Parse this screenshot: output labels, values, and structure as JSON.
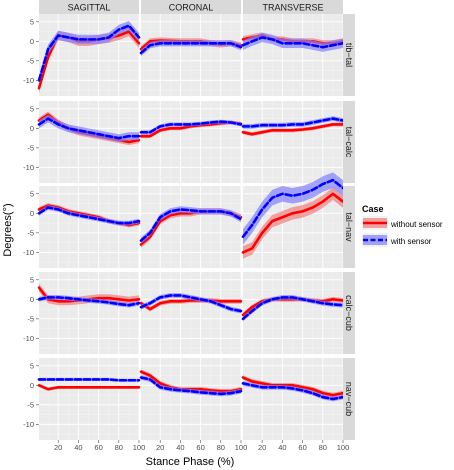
{
  "chart_data": {
    "type": "line",
    "title": "",
    "xlabel": "Stance Phase (%)",
    "ylabel": "Degrees(°)",
    "xlim": [
      1,
      100
    ],
    "ylim": [
      -14,
      7
    ],
    "x_ticks": [
      20,
      40,
      60,
      80,
      100
    ],
    "y_ticks": [
      -10,
      -5,
      0,
      5
    ],
    "grid": true,
    "columns": [
      "SAGITTAL",
      "CORONAL",
      "TRANSVERSE"
    ],
    "rows": [
      "tib−tal",
      "tal−calc",
      "tal−nav",
      "calc−cub",
      "nav−cub"
    ],
    "legend": {
      "title": "Case",
      "position": "right",
      "entries": [
        {
          "label": "without sensor",
          "color": "#ff0000",
          "band": "#f08080",
          "dash": "solid"
        },
        {
          "label": "with sensor",
          "color": "#0000ff",
          "band": "#8080ff",
          "dash": "dashed"
        }
      ]
    },
    "x": [
      1,
      10,
      20,
      30,
      40,
      50,
      60,
      70,
      80,
      90,
      100
    ],
    "panels": [
      {
        "row": 0,
        "col": 0,
        "without": {
          "values": [
            -12,
            -4,
            1.5,
            1,
            0,
            0,
            0.5,
            0.8,
            1.5,
            2.5,
            -0.5
          ],
          "sd": 1.2
        },
        "with": {
          "values": [
            -10,
            -2,
            1.5,
            1,
            0.5,
            0.5,
            0.5,
            1,
            3,
            4,
            1
          ],
          "sd": 1.2
        }
      },
      {
        "row": 0,
        "col": 1,
        "without": {
          "values": [
            -2,
            0,
            0.2,
            0.1,
            0,
            0,
            0,
            -0.5,
            -0.8,
            -0.5,
            -1
          ],
          "sd": 0.8
        },
        "with": {
          "values": [
            -3,
            -1,
            -0.5,
            -0.5,
            -0.5,
            -0.5,
            -0.5,
            -0.5,
            -0.5,
            -0.5,
            -1.5
          ],
          "sd": 0.8
        }
      },
      {
        "row": 0,
        "col": 2,
        "without": {
          "values": [
            0.5,
            1,
            1.5,
            0.5,
            0.5,
            0,
            0,
            0,
            -0.5,
            -0.5,
            0
          ],
          "sd": 0.8
        },
        "with": {
          "values": [
            -1,
            0,
            1,
            0.5,
            -0.5,
            -0.5,
            -0.5,
            -1,
            -1.5,
            -1,
            -0.5
          ],
          "sd": 1.2
        }
      },
      {
        "row": 1,
        "col": 0,
        "without": {
          "values": [
            2,
            3.5,
            1.5,
            0,
            -1,
            -1.5,
            -2,
            -2.5,
            -3,
            -3.5,
            -3
          ],
          "sd": 0.8
        },
        "with": {
          "values": [
            1,
            2.5,
            1,
            0,
            -0.5,
            -1,
            -1.5,
            -2,
            -2.5,
            -2,
            -2
          ],
          "sd": 1
        }
      },
      {
        "row": 1,
        "col": 1,
        "without": {
          "values": [
            -2,
            -2,
            -0.5,
            0,
            0,
            0.5,
            0.8,
            1,
            1.3,
            1.5,
            1.2
          ],
          "sd": 0.5
        },
        "with": {
          "values": [
            -1,
            -1,
            0.5,
            1,
            1,
            1,
            1.2,
            1.5,
            1.7,
            1.5,
            1
          ],
          "sd": 0.5
        }
      },
      {
        "row": 1,
        "col": 2,
        "without": {
          "values": [
            -1,
            -1.5,
            -1,
            -0.5,
            -0.5,
            -0.5,
            -0.3,
            0,
            0.5,
            1,
            1
          ],
          "sd": 0.5
        },
        "with": {
          "values": [
            0.5,
            0.5,
            0.8,
            0.8,
            0.8,
            1,
            1,
            1.5,
            2,
            2.5,
            2
          ],
          "sd": 0.6
        }
      },
      {
        "row": 2,
        "col": 0,
        "without": {
          "values": [
            1,
            2,
            1.5,
            0.5,
            0,
            -0.5,
            -1,
            -2,
            -2.5,
            -3,
            -2.5
          ],
          "sd": 0.6
        },
        "with": {
          "values": [
            0,
            1.5,
            1,
            0,
            -0.5,
            -1,
            -1.5,
            -2,
            -2.5,
            -2.5,
            -2
          ],
          "sd": 0.6
        }
      },
      {
        "row": 2,
        "col": 1,
        "without": {
          "values": [
            -8,
            -6,
            -2,
            -0.5,
            0,
            0,
            0.5,
            0.5,
            0.5,
            0,
            -1
          ],
          "sd": 0.8
        },
        "with": {
          "values": [
            -7,
            -5,
            -1,
            0.5,
            1,
            0.8,
            0.5,
            0.5,
            0.5,
            0,
            -1.5
          ],
          "sd": 0.8
        }
      },
      {
        "row": 2,
        "col": 2,
        "without": {
          "values": [
            -10,
            -9,
            -5,
            -2,
            -1,
            0,
            0.5,
            1.5,
            3,
            5,
            3
          ],
          "sd": 1.6
        },
        "with": {
          "values": [
            -6,
            -3,
            1,
            4,
            5,
            4.5,
            5,
            6,
            7.5,
            8.5,
            6.5
          ],
          "sd": 2
        }
      },
      {
        "row": 3,
        "col": 0,
        "without": {
          "values": [
            3,
            0,
            -0.5,
            -0.5,
            -0.3,
            0,
            0.3,
            0.3,
            0,
            -0.3,
            0
          ],
          "sd": 1
        }
      },
      {
        "row": 3,
        "col": 0,
        "with": {
          "values": [
            0,
            0.5,
            0.5,
            0.3,
            0,
            -0.3,
            -0.5,
            -0.8,
            -1.2,
            -1.5,
            -1
          ],
          "sd": 0.6
        }
      },
      {
        "row": 3,
        "col": 1,
        "without": {
          "values": [
            -1,
            -2.5,
            -1,
            -0.5,
            -0.5,
            -0.3,
            -0.3,
            -0.3,
            -0.5,
            -0.5,
            -0.5
          ],
          "sd": 0.6
        },
        "with": {
          "values": [
            -2,
            -1,
            0.5,
            1,
            1,
            0.5,
            0,
            -0.5,
            -1.5,
            -2.5,
            -3
          ],
          "sd": 0.6
        }
      },
      {
        "row": 3,
        "col": 2,
        "without": {
          "values": [
            -4,
            -2,
            -0.5,
            0,
            0,
            0,
            0,
            -0.3,
            -0.5,
            0,
            -0.3
          ],
          "sd": 0.6
        },
        "with": {
          "values": [
            -5,
            -3,
            -1,
            0,
            0.5,
            0.5,
            0,
            -0.5,
            -1,
            -1.3,
            -1.5
          ],
          "sd": 0.6
        }
      },
      {
        "row": 4,
        "col": 0,
        "without": {
          "values": [
            0,
            -1,
            -0.5,
            -0.5,
            -0.5,
            -0.5,
            -0.5,
            -0.5,
            -0.5,
            -0.5,
            -0.5
          ],
          "sd": 0.4
        },
        "with": {
          "values": [
            1.5,
            1.5,
            1.5,
            1.5,
            1.5,
            1.5,
            1.5,
            1.5,
            1.3,
            1.3,
            1.3
          ],
          "sd": 0.4
        }
      },
      {
        "row": 4,
        "col": 1,
        "without": {
          "values": [
            3.5,
            2.5,
            0.5,
            -0.5,
            -1,
            -1,
            -1,
            -1.3,
            -1.5,
            -1.5,
            -1
          ],
          "sd": 0.6
        },
        "with": {
          "values": [
            2,
            1.5,
            -0.5,
            -1,
            -1.3,
            -1.5,
            -1.8,
            -2,
            -2.2,
            -2,
            -1.5
          ],
          "sd": 0.6
        }
      },
      {
        "row": 4,
        "col": 2,
        "without": {
          "values": [
            2,
            1,
            0.5,
            0,
            0,
            0,
            -0.5,
            -1,
            -2,
            -2.5,
            -2
          ],
          "sd": 0.6
        },
        "with": {
          "values": [
            0.5,
            0,
            -0.5,
            -0.5,
            -0.5,
            -0.8,
            -1.3,
            -2,
            -3,
            -3.5,
            -3
          ],
          "sd": 0.6
        }
      }
    ]
  }
}
